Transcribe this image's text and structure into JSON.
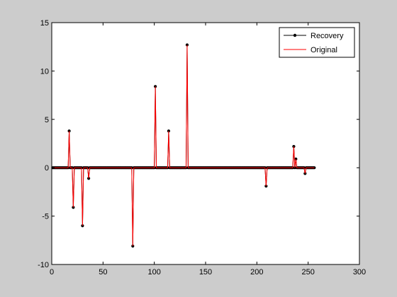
{
  "chart_data": {
    "type": "line",
    "title": "",
    "xlabel": "",
    "ylabel": "",
    "xlim": [
      0,
      300
    ],
    "ylim": [
      -10,
      15
    ],
    "grid": false,
    "legend_position": "top-right",
    "xticks": [
      0,
      50,
      100,
      150,
      200,
      250,
      300
    ],
    "yticks": [
      -10,
      -5,
      0,
      5,
      10,
      15
    ],
    "xtick_labels": [
      "0",
      "50",
      "100",
      "150",
      "200",
      "250",
      "300"
    ],
    "ytick_labels": [
      "-10",
      "-5",
      "0",
      "5",
      "10",
      "15"
    ],
    "n_points": 256,
    "series": [
      {
        "name": "Recovery",
        "color": "#000000",
        "style": "line-with-dot-markers",
        "nonzero": [
          {
            "x": 17,
            "y": 3.8
          },
          {
            "x": 21,
            "y": -4.1
          },
          {
            "x": 30,
            "y": -6.0
          },
          {
            "x": 36,
            "y": -1.1
          },
          {
            "x": 79,
            "y": -8.1
          },
          {
            "x": 101,
            "y": 8.4
          },
          {
            "x": 114,
            "y": 3.8
          },
          {
            "x": 132,
            "y": 12.7
          },
          {
            "x": 209,
            "y": -1.9
          },
          {
            "x": 236,
            "y": 2.2
          },
          {
            "x": 238,
            "y": 0.9
          },
          {
            "x": 247,
            "y": -0.6
          }
        ]
      },
      {
        "name": "Original",
        "color": "#ff0000",
        "style": "line",
        "nonzero": [
          {
            "x": 17,
            "y": 3.8
          },
          {
            "x": 21,
            "y": -4.1
          },
          {
            "x": 30,
            "y": -6.0
          },
          {
            "x": 36,
            "y": -1.1
          },
          {
            "x": 79,
            "y": -8.1
          },
          {
            "x": 101,
            "y": 8.4
          },
          {
            "x": 114,
            "y": 3.8
          },
          {
            "x": 132,
            "y": 12.7
          },
          {
            "x": 209,
            "y": -1.9
          },
          {
            "x": 236,
            "y": 2.2
          },
          {
            "x": 238,
            "y": 0.9
          },
          {
            "x": 247,
            "y": -0.6
          }
        ]
      }
    ]
  }
}
